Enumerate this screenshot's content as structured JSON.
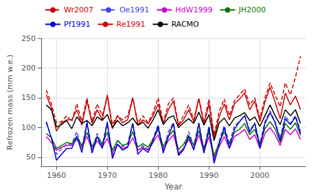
{
  "chart_data": {
    "type": "line",
    "x": [
      1958,
      1959,
      1960,
      1961,
      1962,
      1963,
      1964,
      1965,
      1966,
      1967,
      1968,
      1969,
      1970,
      1971,
      1972,
      1973,
      1974,
      1975,
      1976,
      1977,
      1978,
      1979,
      1980,
      1981,
      1982,
      1983,
      1984,
      1985,
      1986,
      1987,
      1988,
      1989,
      1990,
      1991,
      1992,
      1993,
      1994,
      1995,
      1996,
      1997,
      1998,
      1999,
      2000,
      2001,
      2002,
      2003,
      2004,
      2005,
      2006,
      2007,
      2008
    ],
    "series": [
      {
        "name": "Wr2007",
        "color": "#cc0000",
        "line_style": "dashed",
        "values": [
          163,
          140,
          108,
          110,
          120,
          110,
          140,
          110,
          150,
          110,
          140,
          120,
          152,
          105,
          120,
          113,
          120,
          150,
          108,
          120,
          108,
          125,
          150,
          108,
          140,
          150,
          105,
          120,
          138,
          113,
          150,
          108,
          148,
          87,
          127,
          148,
          120,
          145,
          155,
          165,
          138,
          150,
          115,
          150,
          175,
          155,
          135,
          175,
          155,
          185,
          220
        ]
      },
      {
        "name": "Oe1991",
        "color": "#4444dd",
        "line_style": "dashed",
        "values": [
          108,
          83,
          55,
          65,
          72,
          72,
          93,
          65,
          110,
          63,
          90,
          70,
          110,
          52,
          80,
          68,
          73,
          108,
          62,
          70,
          63,
          82,
          105,
          62,
          93,
          108,
          55,
          65,
          93,
          70,
          108,
          62,
          103,
          43,
          78,
          103,
          73,
          103,
          110,
          120,
          95,
          108,
          73,
          110,
          128,
          110,
          82,
          120,
          107,
          120,
          95
        ]
      },
      {
        "name": "HdW1999",
        "color": "#cc00cc",
        "line_style": "solid",
        "values": [
          85,
          75,
          62,
          67,
          70,
          70,
          80,
          67,
          85,
          63,
          78,
          67,
          82,
          58,
          72,
          65,
          68,
          83,
          62,
          67,
          62,
          75,
          88,
          63,
          78,
          88,
          57,
          65,
          80,
          65,
          88,
          60,
          85,
          50,
          68,
          85,
          65,
          85,
          90,
          97,
          80,
          88,
          65,
          90,
          100,
          88,
          70,
          97,
          88,
          98,
          80
        ]
      },
      {
        "name": "JH2000",
        "color": "#007700",
        "line_style": "solid",
        "values": [
          90,
          83,
          65,
          70,
          75,
          73,
          85,
          70,
          92,
          68,
          85,
          73,
          92,
          62,
          78,
          70,
          73,
          93,
          67,
          73,
          67,
          80,
          97,
          68,
          85,
          95,
          63,
          72,
          87,
          70,
          95,
          65,
          93,
          53,
          75,
          93,
          72,
          92,
          97,
          107,
          88,
          97,
          72,
          98,
          110,
          98,
          75,
          107,
          97,
          108,
          87
        ]
      },
      {
        "name": "Pf1991",
        "color": "#0000cc",
        "line_style": "solid",
        "values": [
          110,
          82,
          45,
          55,
          65,
          65,
          85,
          58,
          108,
          57,
          85,
          65,
          108,
          48,
          72,
          62,
          67,
          107,
          55,
          65,
          58,
          78,
          102,
          57,
          85,
          107,
          53,
          63,
          85,
          62,
          107,
          57,
          100,
          40,
          72,
          100,
          65,
          97,
          110,
          120,
          92,
          107,
          65,
          107,
          125,
          108,
          78,
          115,
          105,
          118,
          90
        ]
      },
      {
        "name": "Re1991",
        "color": "#cc0000",
        "line_style": "solid",
        "values": [
          155,
          133,
          94,
          108,
          113,
          113,
          130,
          104,
          145,
          107,
          130,
          113,
          155,
          98,
          120,
          108,
          113,
          150,
          105,
          113,
          106,
          120,
          140,
          106,
          130,
          145,
          103,
          113,
          130,
          110,
          148,
          105,
          140,
          83,
          118,
          140,
          113,
          140,
          148,
          158,
          130,
          145,
          110,
          143,
          168,
          143,
          115,
          158,
          138,
          153,
          130
        ]
      },
      {
        "name": "RACMO",
        "color": "#000000",
        "line_style": "solid",
        "values": [
          138,
          130,
          101,
          105,
          112,
          98,
          118,
          107,
          112,
          103,
          118,
          112,
          122,
          100,
          112,
          103,
          108,
          116,
          104,
          109,
          99,
          113,
          130,
          105,
          116,
          120,
          100,
          108,
          115,
          107,
          126,
          104,
          122,
          78,
          108,
          116,
          103,
          116,
          120,
          125,
          112,
          118,
          102,
          120,
          138,
          120,
          105,
          130,
          120,
          130,
          107
        ]
      }
    ],
    "xlabel": "Year",
    "ylabel": "Refrozen mass (mm w.e.)",
    "xlim": [
      1957,
      2009
    ],
    "xticks": [
      1960,
      1970,
      1980,
      1990,
      2000
    ],
    "ylim": [
      35,
      250
    ],
    "yticks": [
      50,
      100,
      150,
      200,
      250
    ],
    "grid": true,
    "legend": "upper left"
  }
}
